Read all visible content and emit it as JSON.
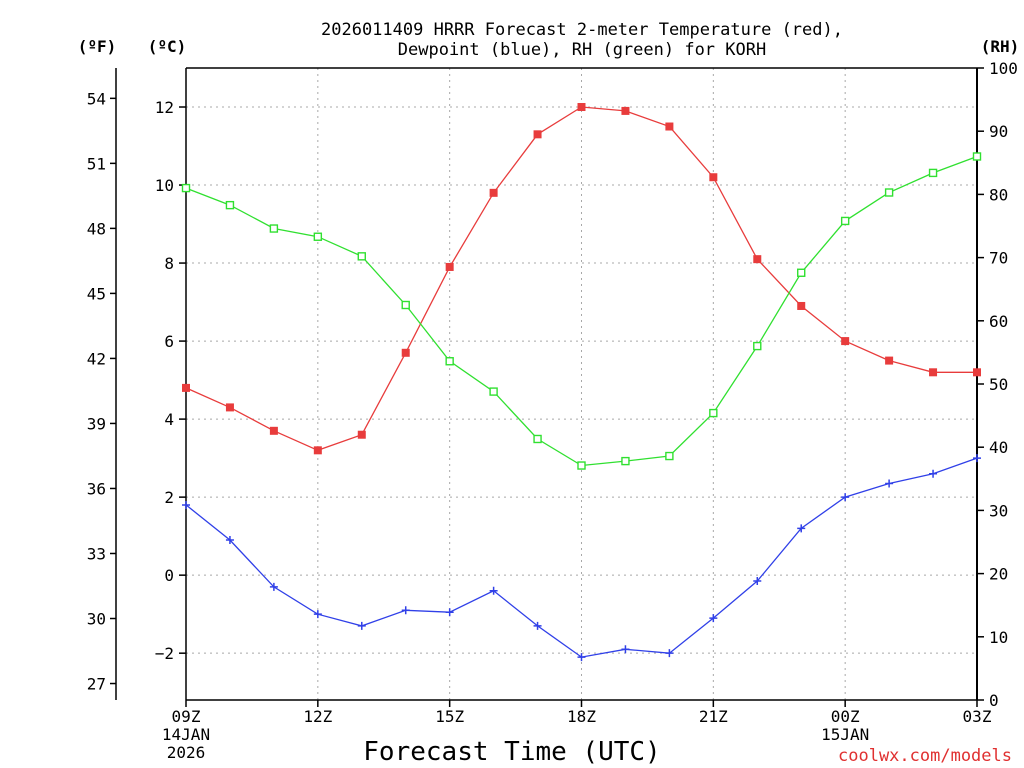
{
  "chart_data": {
    "type": "line",
    "title_line1": "2026011409 HRRR Forecast 2-meter Temperature (red),",
    "title_line2": "Dewpoint (blue), RH (green) for KORH",
    "xlabel": "Forecast Time (UTC)",
    "credit": "coolwx.com/models",
    "x_hours": [
      0,
      1,
      2,
      3,
      4,
      5,
      6,
      7,
      8,
      9,
      10,
      11,
      12,
      13,
      14,
      15,
      16,
      17,
      18
    ],
    "x_ticks": [
      {
        "hour": 0,
        "label": "09Z",
        "sub1": "14JAN",
        "sub2": "2026"
      },
      {
        "hour": 3,
        "label": "12Z",
        "sub1": "",
        "sub2": ""
      },
      {
        "hour": 6,
        "label": "15Z",
        "sub1": "",
        "sub2": ""
      },
      {
        "hour": 9,
        "label": "18Z",
        "sub1": "",
        "sub2": ""
      },
      {
        "hour": 12,
        "label": "21Z",
        "sub1": "",
        "sub2": ""
      },
      {
        "hour": 15,
        "label": "00Z",
        "sub1": "15JAN",
        "sub2": ""
      },
      {
        "hour": 18,
        "label": "03Z",
        "sub1": "",
        "sub2": ""
      }
    ],
    "left_c_axis": {
      "unit": "(ºC)",
      "ylim": [
        -3.2,
        13.0
      ],
      "ticks": [
        -2,
        0,
        2,
        4,
        6,
        8,
        10,
        12
      ]
    },
    "left_f_axis": {
      "unit": "(ºF)",
      "ticks": [
        27,
        30,
        33,
        36,
        39,
        42,
        45,
        48,
        51,
        54
      ]
    },
    "right_rh_axis": {
      "unit": "(RH)",
      "ylim": [
        0,
        100
      ],
      "ticks": [
        0,
        10,
        20,
        30,
        40,
        50,
        60,
        70,
        80,
        90,
        100
      ]
    },
    "series": [
      {
        "name": "Temperature",
        "color": "#e83c3c",
        "marker": "filled-square",
        "axis": "C",
        "values": [
          4.8,
          4.3,
          3.7,
          3.2,
          3.6,
          5.7,
          7.9,
          9.8,
          11.3,
          12.0,
          11.9,
          11.5,
          10.2,
          8.1,
          6.9,
          6.0,
          5.5,
          5.2,
          5.2
        ]
      },
      {
        "name": "Dewpoint",
        "color": "#3040e8",
        "marker": "plus",
        "axis": "C",
        "values": [
          1.8,
          0.9,
          -0.3,
          -1.0,
          -1.3,
          -0.9,
          -0.95,
          -0.4,
          -1.3,
          -2.1,
          -1.9,
          -2.0,
          -1.1,
          -0.15,
          1.2,
          2.0,
          2.35,
          2.6,
          3.0
        ]
      },
      {
        "name": "RH",
        "color": "#30e030",
        "marker": "open-square",
        "axis": "RH",
        "values": [
          81,
          78.3,
          74.6,
          73.3,
          70.2,
          62.5,
          53.6,
          48.8,
          41.3,
          37.1,
          37.8,
          38.6,
          45.4,
          56.0,
          67.6,
          75.8,
          80.3,
          83.4,
          86.0
        ]
      }
    ]
  }
}
